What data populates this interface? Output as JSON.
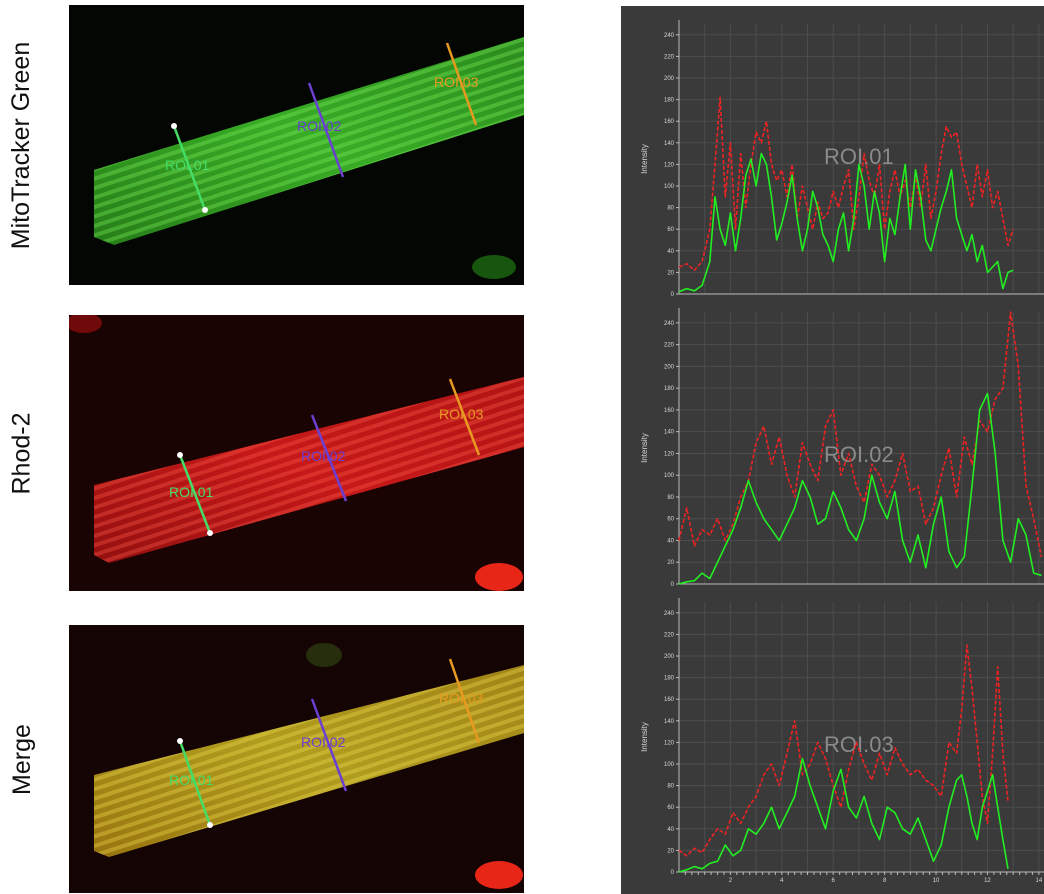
{
  "rows": [
    {
      "label": "MitoTracker Green",
      "roi_labels": [
        "ROI.01",
        "ROI.02",
        "ROI.03"
      ]
    },
    {
      "label": "Rhod-2",
      "roi_labels": [
        "ROI.01",
        "ROI.02",
        "ROI.03"
      ]
    },
    {
      "label": "Merge",
      "roi_labels": [
        "ROI.01",
        "ROI.02",
        "ROI.03"
      ]
    }
  ],
  "colors": {
    "roi01": "#44dd66",
    "roi02": "#6a3fd1",
    "roi03": "#e89a20",
    "green_trace": "#22ee22",
    "red_trace": "#ee2222",
    "plot_bg": "#3a3a3a"
  },
  "chart_data": [
    {
      "type": "line",
      "title": "ROI.01",
      "ylabel": "Intensity",
      "xlabel": "",
      "xlim": [
        0,
        14.2
      ],
      "ylim": [
        0,
        250
      ],
      "yticks": [
        0,
        20,
        40,
        60,
        80,
        100,
        120,
        140,
        160,
        180,
        200,
        220,
        240
      ],
      "xticks": [],
      "grid": true,
      "series": [
        {
          "color": "#ee2222",
          "dashed": true,
          "x": [
            0,
            0.3,
            0.6,
            0.9,
            1.2,
            1.4,
            1.6,
            1.8,
            2.0,
            2.2,
            2.4,
            2.6,
            2.8,
            3.0,
            3.2,
            3.4,
            3.6,
            3.8,
            4.0,
            4.2,
            4.4,
            4.6,
            4.8,
            5.0,
            5.2,
            5.4,
            5.6,
            5.8,
            6.0,
            6.2,
            6.4,
            6.6,
            6.8,
            7.0,
            7.2,
            7.4,
            7.6,
            7.8,
            8.0,
            8.2,
            8.4,
            8.6,
            8.8,
            9.0,
            9.2,
            9.4,
            9.6,
            9.8,
            10.0,
            10.2,
            10.4,
            10.6,
            10.8,
            11.0,
            11.2,
            11.4,
            11.6,
            11.8,
            12.0,
            12.2,
            12.4,
            12.6,
            12.8,
            13.0
          ],
          "y": [
            25,
            28,
            22,
            30,
            60,
            120,
            182,
            90,
            140,
            60,
            130,
            80,
            120,
            150,
            140,
            160,
            120,
            105,
            115,
            90,
            120,
            70,
            100,
            80,
            60,
            85,
            70,
            75,
            95,
            80,
            100,
            115,
            60,
            90,
            130,
            105,
            90,
            120,
            60,
            95,
            115,
            90,
            105,
            80,
            110,
            80,
            120,
            70,
            95,
            130,
            155,
            145,
            150,
            120,
            100,
            80,
            120,
            90,
            115,
            80,
            95,
            70,
            45,
            60
          ]
        },
        {
          "color": "#22ee22",
          "dashed": false,
          "x": [
            0,
            0.3,
            0.6,
            0.9,
            1.2,
            1.4,
            1.6,
            1.8,
            2.0,
            2.2,
            2.4,
            2.6,
            2.8,
            3.0,
            3.2,
            3.4,
            3.6,
            3.8,
            4.0,
            4.2,
            4.4,
            4.6,
            4.8,
            5.0,
            5.2,
            5.4,
            5.6,
            5.8,
            6.0,
            6.2,
            6.4,
            6.6,
            6.8,
            7.0,
            7.2,
            7.4,
            7.6,
            7.8,
            8.0,
            8.2,
            8.4,
            8.6,
            8.8,
            9.0,
            9.2,
            9.4,
            9.6,
            9.8,
            10.0,
            10.2,
            10.4,
            10.6,
            10.8,
            11.0,
            11.2,
            11.4,
            11.6,
            11.8,
            12.0,
            12.2,
            12.4,
            12.6,
            12.8,
            13.0
          ],
          "y": [
            2,
            5,
            3,
            8,
            30,
            90,
            60,
            45,
            75,
            40,
            70,
            110,
            125,
            100,
            130,
            120,
            90,
            50,
            65,
            85,
            110,
            70,
            40,
            60,
            95,
            80,
            55,
            45,
            30,
            60,
            75,
            40,
            70,
            120,
            100,
            60,
            95,
            75,
            30,
            70,
            55,
            90,
            120,
            60,
            115,
            90,
            50,
            40,
            60,
            80,
            95,
            115,
            70,
            55,
            40,
            55,
            30,
            45,
            20,
            25,
            30,
            5,
            20,
            22
          ]
        }
      ]
    },
    {
      "type": "line",
      "title": "ROI.02",
      "ylabel": "Intensity",
      "xlabel": "",
      "xlim": [
        0,
        14.2
      ],
      "ylim": [
        0,
        250
      ],
      "yticks": [
        0,
        20,
        40,
        60,
        80,
        100,
        120,
        140,
        160,
        180,
        200,
        220,
        240
      ],
      "xticks": [],
      "grid": true,
      "series": [
        {
          "color": "#ee2222",
          "dashed": true,
          "x": [
            0,
            0.3,
            0.6,
            0.9,
            1.2,
            1.5,
            1.8,
            2.1,
            2.4,
            2.7,
            3.0,
            3.3,
            3.6,
            3.9,
            4.2,
            4.5,
            4.8,
            5.1,
            5.4,
            5.7,
            6.0,
            6.3,
            6.6,
            6.9,
            7.2,
            7.5,
            7.8,
            8.1,
            8.4,
            8.7,
            9.0,
            9.3,
            9.6,
            9.9,
            10.2,
            10.5,
            10.8,
            11.1,
            11.4,
            11.7,
            12.0,
            12.3,
            12.6,
            12.9,
            13.2,
            13.5,
            13.8,
            14.1
          ],
          "y": [
            40,
            70,
            35,
            50,
            45,
            60,
            40,
            55,
            80,
            95,
            130,
            145,
            110,
            135,
            100,
            80,
            130,
            110,
            95,
            145,
            160,
            100,
            120,
            90,
            75,
            110,
            100,
            80,
            95,
            120,
            85,
            90,
            55,
            70,
            100,
            125,
            80,
            135,
            110,
            150,
            140,
            170,
            180,
            250,
            200,
            90,
            60,
            25
          ]
        },
        {
          "color": "#22ee22",
          "dashed": false,
          "x": [
            0,
            0.3,
            0.6,
            0.9,
            1.2,
            1.5,
            1.8,
            2.1,
            2.4,
            2.7,
            3.0,
            3.3,
            3.6,
            3.9,
            4.2,
            4.5,
            4.8,
            5.1,
            5.4,
            5.7,
            6.0,
            6.3,
            6.6,
            6.9,
            7.2,
            7.5,
            7.8,
            8.1,
            8.4,
            8.7,
            9.0,
            9.3,
            9.6,
            9.9,
            10.2,
            10.5,
            10.8,
            11.1,
            11.4,
            11.7,
            12.0,
            12.3,
            12.6,
            12.9,
            13.2,
            13.5,
            13.8,
            14.1
          ],
          "y": [
            0,
            2,
            3,
            10,
            5,
            20,
            35,
            50,
            70,
            95,
            75,
            60,
            50,
            40,
            55,
            70,
            95,
            80,
            55,
            60,
            85,
            70,
            50,
            40,
            60,
            100,
            75,
            60,
            85,
            40,
            20,
            45,
            15,
            55,
            80,
            30,
            15,
            25,
            90,
            160,
            175,
            120,
            40,
            20,
            60,
            45,
            10,
            8
          ]
        }
      ]
    },
    {
      "type": "line",
      "title": "ROI.03",
      "ylabel": "Intensity",
      "xlabel": "",
      "xlim": [
        0,
        14.2
      ],
      "ylim": [
        0,
        250
      ],
      "yticks": [
        0,
        20,
        40,
        60,
        80,
        100,
        120,
        140,
        160,
        180,
        200,
        220,
        240
      ],
      "xticks": [
        "2",
        "4",
        "6",
        "8",
        "10",
        "12",
        "14"
      ],
      "xtick_values": [
        2,
        4,
        6,
        8,
        10,
        12,
        14
      ],
      "grid": true,
      "series": [
        {
          "color": "#ee2222",
          "dashed": true,
          "x": [
            0,
            0.3,
            0.6,
            0.9,
            1.2,
            1.5,
            1.8,
            2.1,
            2.4,
            2.7,
            3.0,
            3.3,
            3.6,
            3.9,
            4.2,
            4.5,
            4.8,
            5.1,
            5.4,
            5.7,
            6.0,
            6.3,
            6.6,
            6.9,
            7.2,
            7.5,
            7.8,
            8.1,
            8.4,
            8.7,
            9.0,
            9.3,
            9.6,
            9.9,
            10.2,
            10.5,
            10.8,
            11.0,
            11.2,
            11.4,
            11.6,
            11.8,
            12.0,
            12.2,
            12.4,
            12.6,
            12.8
          ],
          "y": [
            20,
            15,
            22,
            18,
            30,
            40,
            35,
            55,
            45,
            60,
            70,
            90,
            100,
            80,
            110,
            140,
            90,
            100,
            120,
            105,
            80,
            60,
            95,
            120,
            100,
            85,
            110,
            90,
            115,
            100,
            90,
            95,
            85,
            80,
            70,
            120,
            110,
            150,
            210,
            170,
            120,
            70,
            45,
            110,
            190,
            110,
            65
          ]
        },
        {
          "color": "#22ee22",
          "dashed": false,
          "x": [
            0,
            0.3,
            0.6,
            0.9,
            1.2,
            1.5,
            1.8,
            2.1,
            2.4,
            2.7,
            3.0,
            3.3,
            3.6,
            3.9,
            4.2,
            4.5,
            4.8,
            5.1,
            5.4,
            5.7,
            6.0,
            6.3,
            6.6,
            6.9,
            7.2,
            7.5,
            7.8,
            8.1,
            8.4,
            8.7,
            9.0,
            9.3,
            9.6,
            9.9,
            10.2,
            10.5,
            10.8,
            11.0,
            11.2,
            11.4,
            11.6,
            11.8,
            12.0,
            12.2,
            12.4,
            12.6,
            12.8
          ],
          "y": [
            0,
            2,
            5,
            3,
            8,
            10,
            25,
            15,
            20,
            40,
            35,
            45,
            60,
            40,
            55,
            70,
            105,
            80,
            60,
            40,
            75,
            95,
            60,
            50,
            70,
            45,
            30,
            60,
            55,
            40,
            35,
            50,
            30,
            10,
            25,
            60,
            85,
            90,
            70,
            45,
            30,
            60,
            75,
            90,
            60,
            30,
            3
          ]
        }
      ]
    }
  ]
}
